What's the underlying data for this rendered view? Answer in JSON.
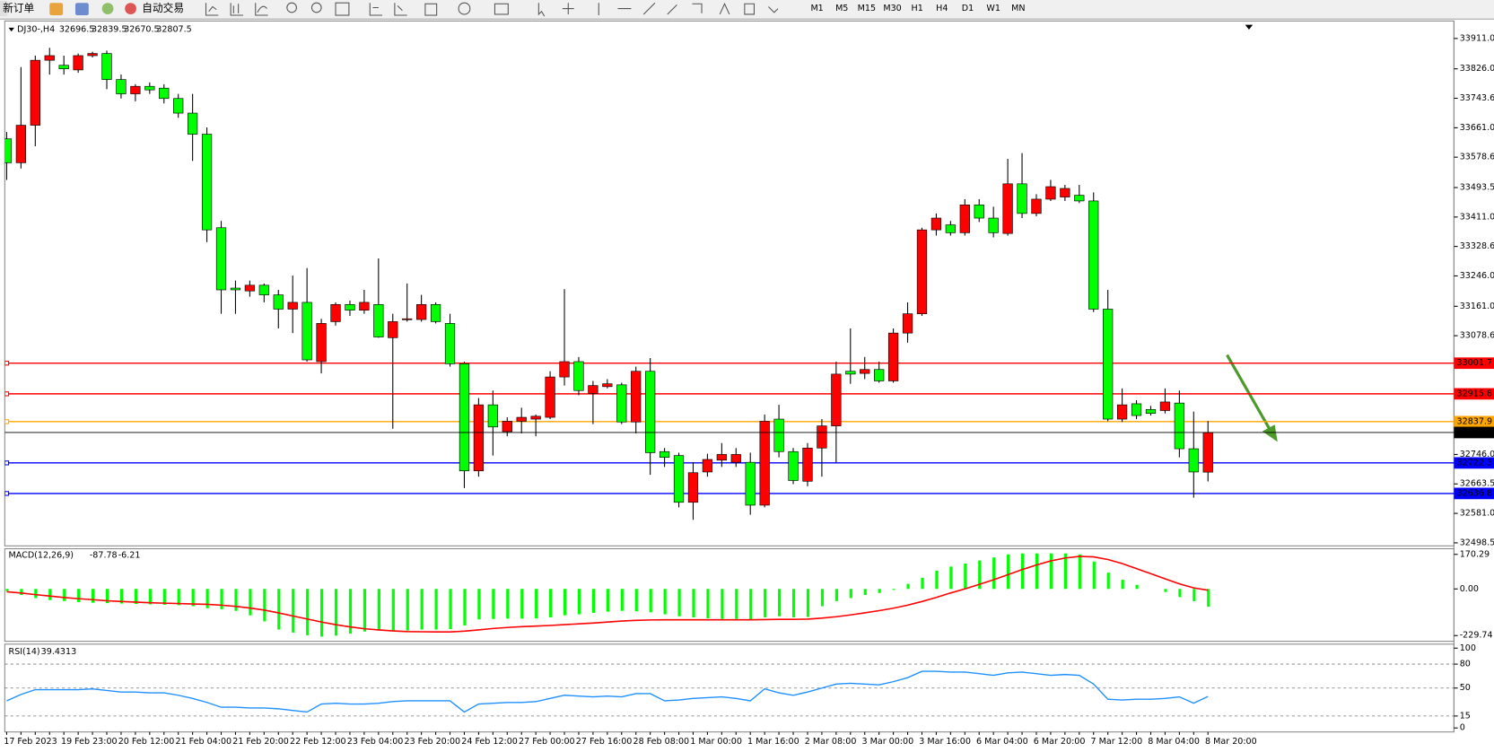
{
  "toolbar": {
    "new_order": "新订单",
    "auto_trading": "自动交易",
    "timeframes": [
      "M1",
      "M5",
      "M15",
      "M30",
      "H1",
      "H4",
      "D1",
      "W1",
      "MN"
    ]
  },
  "chart_data": [
    {
      "type": "candlestick",
      "symbol": "DJ30-,H4",
      "x": [
        "17 Feb 2023",
        null,
        null,
        null,
        "19 Feb 23:00",
        null,
        null,
        null,
        "20 Feb 12:00",
        null,
        null,
        null,
        "21 Feb 04:00",
        null,
        null,
        null,
        "21 Feb 20:00",
        null,
        null,
        null,
        "22 Feb 12:00",
        null,
        null,
        null,
        "23 Feb 04:00",
        null,
        null,
        null,
        "23 Feb 20:00",
        null,
        null,
        null,
        "24 Feb 12:00",
        null,
        null,
        null,
        "27 Feb 00:00",
        null,
        null,
        null,
        "27 Feb 16:00",
        null,
        null,
        null,
        "28 Feb 08:00",
        null,
        null,
        null,
        "1 Mar 00:00",
        null,
        null,
        null,
        "1 Mar 16:00",
        null,
        null,
        null,
        "2 Mar 08:00",
        null,
        null,
        null,
        "3 Mar 00:00",
        null,
        null,
        null,
        "3 Mar 16:00",
        null,
        null,
        null,
        "6 Mar 04:00",
        null,
        null,
        null,
        "6 Mar 20:00",
        null,
        null,
        null,
        "7 Mar 12:00",
        null,
        null,
        null,
        "8 Mar 04:00",
        null,
        null,
        null,
        "8 Mar 20:00"
      ],
      "series": {
        "open": [
          33630,
          33563,
          33668,
          33850,
          33836,
          33823,
          33863,
          33869,
          33796,
          33756,
          33777,
          33772,
          33743,
          33702,
          33643,
          33381,
          33212,
          33204,
          33220,
          33193,
          33153,
          33172,
          33006,
          33118,
          33166,
          33150,
          33166,
          33073,
          33124,
          33124,
          33166,
          33113,
          33000,
          32700,
          32885,
          32810,
          32839,
          32845,
          32850,
          32963,
          33006,
          32917,
          32936,
          32941,
          32837,
          32979,
          32754,
          32743,
          32612,
          32697,
          32730,
          32724,
          32724,
          32604,
          32845,
          32754,
          32671,
          32764,
          32826,
          32979,
          32973,
          32984,
          32952,
          33086,
          33140,
          33375,
          33389,
          33367,
          33445,
          33408,
          33365,
          33504,
          33421,
          33461,
          33467,
          33472,
          33456,
          33153,
          32845,
          32888,
          32872,
          32869,
          32890,
          32762,
          32696.5
        ],
        "high": [
          33649,
          33831,
          33863,
          33885,
          33863,
          33869,
          33874,
          33877,
          33810,
          33783,
          33788,
          33783,
          33756,
          33756,
          33662,
          33400,
          33233,
          33233,
          33225,
          33207,
          33247,
          33268,
          33126,
          33172,
          33177,
          33207,
          33295,
          33140,
          33225,
          33193,
          33172,
          33140,
          33006,
          32904,
          32925,
          32850,
          32877,
          32858,
          32979,
          33209,
          33019,
          32952,
          32957,
          32947,
          32992,
          33016,
          32764,
          32751,
          32724,
          32748,
          32778,
          32764,
          32751,
          32858,
          32885,
          32764,
          32778,
          32845,
          33006,
          33099,
          33019,
          33006,
          33099,
          33172,
          33381,
          33421,
          33400,
          33461,
          33461,
          33440,
          33574,
          33590,
          33475,
          33515,
          33501,
          33501,
          33480,
          33207,
          32931,
          32898,
          32882,
          32931,
          32925,
          32866,
          32839.5
        ],
        "low": [
          33515,
          33547,
          33609,
          33810,
          33810,
          33815,
          33858,
          33769,
          33743,
          33735,
          33756,
          33729,
          33689,
          33568,
          33341,
          33140,
          33140,
          33188,
          33172,
          33099,
          33086,
          33006,
          32973,
          33107,
          33134,
          33140,
          33073,
          32818,
          33118,
          33118,
          33113,
          32992,
          32652,
          32684,
          32743,
          32797,
          32805,
          32797,
          32845,
          32939,
          32912,
          32831,
          32931,
          32831,
          32805,
          32689,
          32711,
          32598,
          32563,
          32684,
          32711,
          32711,
          32577,
          32598,
          32738,
          32663,
          32657,
          32684,
          32724,
          32944,
          32957,
          32947,
          32947,
          33059,
          33134,
          33359,
          33359,
          33359,
          33397,
          33354,
          33359,
          33408,
          33413,
          33456,
          33456,
          33450,
          33145,
          32839,
          32837,
          32845,
          32855,
          32861,
          32738,
          32625,
          32670.5
        ],
        "close": [
          33563,
          33668,
          33850,
          33863,
          33826,
          33863,
          33869,
          33796,
          33756,
          33777,
          33767,
          33743,
          33702,
          33643,
          33375,
          33207,
          33207,
          33220,
          33193,
          33153,
          33172,
          33011,
          33113,
          33166,
          33150,
          33172,
          33075,
          33118,
          33126,
          33166,
          33118,
          33000,
          32700,
          32885,
          32823,
          32839,
          32850,
          32853,
          32963,
          33006,
          32925,
          32939,
          32944,
          32837,
          32979,
          32751,
          32738,
          32612,
          32695,
          32732,
          32746,
          32746,
          32604,
          32839,
          32754,
          32673,
          32764,
          32826,
          32971,
          32971,
          32984,
          32952,
          33086,
          33140,
          33375,
          33408,
          33367,
          33445,
          33408,
          33367,
          33504,
          33421,
          33461,
          33496,
          33491,
          33456,
          33153,
          32845,
          32885,
          32855,
          32861,
          32893,
          32762,
          32697,
          32807.5
        ]
      },
      "up_color": "#ff0000",
      "down_color": "#00ff00",
      "ylim": [
        32490,
        33960
      ],
      "yticks": [
        {
          "value": 33911,
          "label": "33911.0"
        },
        {
          "value": 33826,
          "label": "33826.0"
        },
        33743.6,
        {
          "value": 33661,
          "label": "33661.0"
        },
        33578.6,
        33493.5,
        {
          "value": 33411,
          "label": "33411.0"
        },
        33328.6,
        {
          "value": 33246,
          "label": "33246.0"
        },
        {
          "value": 33161,
          "label": "33161.0"
        },
        33078.6,
        {
          "value": 32746,
          "label": "32746.0"
        },
        32663.5,
        {
          "value": 32581,
          "label": "32581.0"
        },
        32498.5
      ],
      "levels": [
        {
          "value": 33001.7,
          "color": "#ff0000"
        },
        {
          "value": 32915.8,
          "color": "#ff0000"
        },
        {
          "value": 32837.9,
          "color": "#ffa500"
        },
        {
          "value": 32722.3,
          "color": "#0000ff"
        },
        {
          "value": 32636.8,
          "color": "#0000ff"
        }
      ]
    },
    {
      "type": "macd",
      "title": "MACD(12,26,9)",
      "histogram": {
        "color": "#00ff00",
        "values": [
          -10,
          -30,
          -45,
          -55,
          -60,
          -65,
          -68,
          -70,
          -72,
          -74,
          -76,
          -78,
          -80,
          -85,
          -95,
          -100,
          -108,
          -130,
          -160,
          -200,
          -215,
          -228,
          -235,
          -230,
          -220,
          -210,
          -205,
          -205,
          -205,
          -200,
          -200,
          -198,
          -180,
          -150,
          -148,
          -146,
          -146,
          -145,
          -140,
          -130,
          -125,
          -118,
          -112,
          -108,
          -110,
          -115,
          -125,
          -135,
          -140,
          -145,
          -148,
          -148,
          -150,
          -140,
          -135,
          -140,
          -138,
          -85,
          -60,
          -45,
          -30,
          -20,
          -5,
          25,
          55,
          90,
          110,
          125,
          140,
          155,
          170,
          175,
          175,
          175,
          175,
          170,
          135,
          80,
          45,
          20,
          0,
          -15,
          -40,
          -60,
          -87.78
        ]
      },
      "signal": {
        "color": "#ff0000",
        "values": [
          -14,
          -20,
          -28,
          -35,
          -42,
          -48,
          -53,
          -58,
          -62,
          -65,
          -68,
          -70,
          -72,
          -74,
          -76,
          -80,
          -86,
          -94,
          -104,
          -118,
          -133,
          -148,
          -163,
          -176,
          -187,
          -196,
          -202,
          -207,
          -210,
          -211,
          -212,
          -212,
          -208,
          -202,
          -195,
          -190,
          -186,
          -183,
          -180,
          -176,
          -172,
          -168,
          -163,
          -158,
          -155,
          -153,
          -152,
          -152,
          -152,
          -152,
          -152,
          -152,
          -152,
          -151,
          -150,
          -150,
          -149,
          -144,
          -137,
          -128,
          -118,
          -107,
          -95,
          -80,
          -62,
          -42,
          -20,
          0,
          22,
          45,
          70,
          95,
          118,
          138,
          152,
          160,
          158,
          145,
          125,
          100,
          75,
          50,
          25,
          5,
          -6.21
        ]
      },
      "ylim": [
        -258,
        198
      ],
      "yticks": [
        170.29,
        {
          "value": 0,
          "label": "0.00"
        },
        -229.74
      ]
    },
    {
      "type": "rsi",
      "title": "RSI(14)",
      "color": "#1e90ff",
      "values": [
        34,
        42,
        48,
        48,
        48,
        48,
        49,
        47,
        45,
        45,
        44,
        44,
        41,
        37,
        32,
        26,
        26,
        25,
        25,
        24,
        22,
        20,
        30,
        31,
        30,
        30,
        31,
        33,
        34,
        34,
        34,
        34,
        20,
        30,
        31,
        32,
        32,
        33,
        37,
        41,
        40,
        39,
        40,
        39,
        43,
        43,
        34,
        35,
        37,
        38,
        39,
        37,
        34,
        49,
        44,
        41,
        45,
        50,
        55,
        56,
        55,
        54,
        58,
        63,
        71,
        71,
        70,
        70,
        68,
        66,
        69,
        70,
        68,
        66,
        67,
        66,
        55,
        36,
        35,
        36,
        36,
        37,
        39,
        31,
        39.4313
      ],
      "ylim": [
        -5,
        105
      ],
      "yticks": [
        100,
        80,
        50,
        15,
        0
      ],
      "levels": [
        80,
        50,
        15
      ]
    }
  ]
}
